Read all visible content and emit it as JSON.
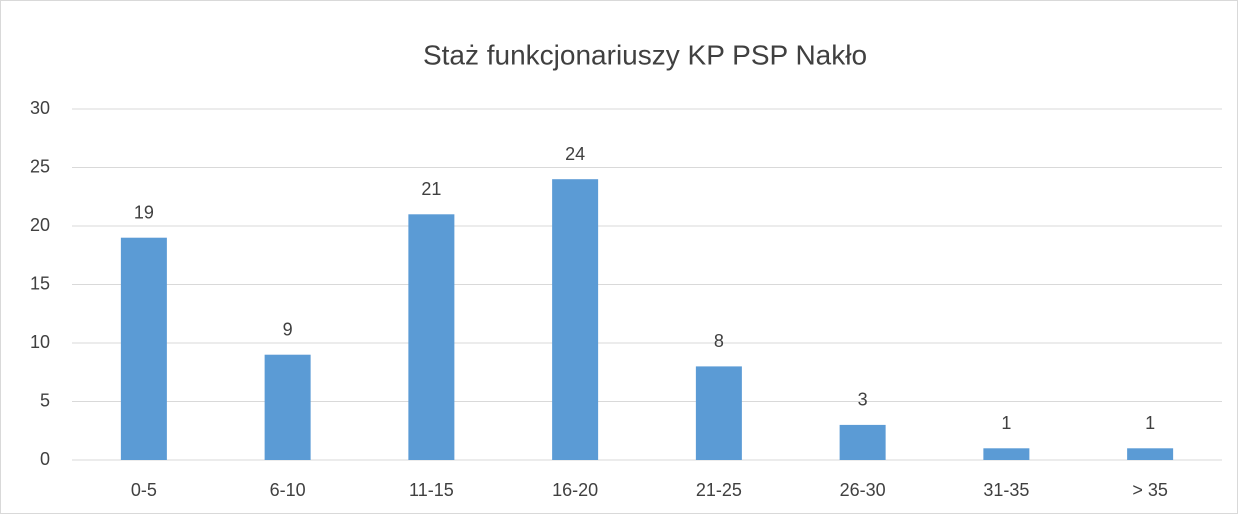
{
  "chart_data": {
    "type": "bar",
    "title": "Staż funkcjonariuszy KP PSP Nakło",
    "categories": [
      "0-5",
      "6-10",
      "11-15",
      "16-20",
      "21-25",
      "26-30",
      "31-35",
      "> 35"
    ],
    "values": [
      19,
      9,
      21,
      24,
      8,
      3,
      1,
      1
    ],
    "color": "#5b9bd5",
    "ylim": [
      0,
      30
    ],
    "yticks": [
      0,
      5,
      10,
      15,
      20,
      25,
      30
    ],
    "grid": true,
    "data_labels": true
  }
}
